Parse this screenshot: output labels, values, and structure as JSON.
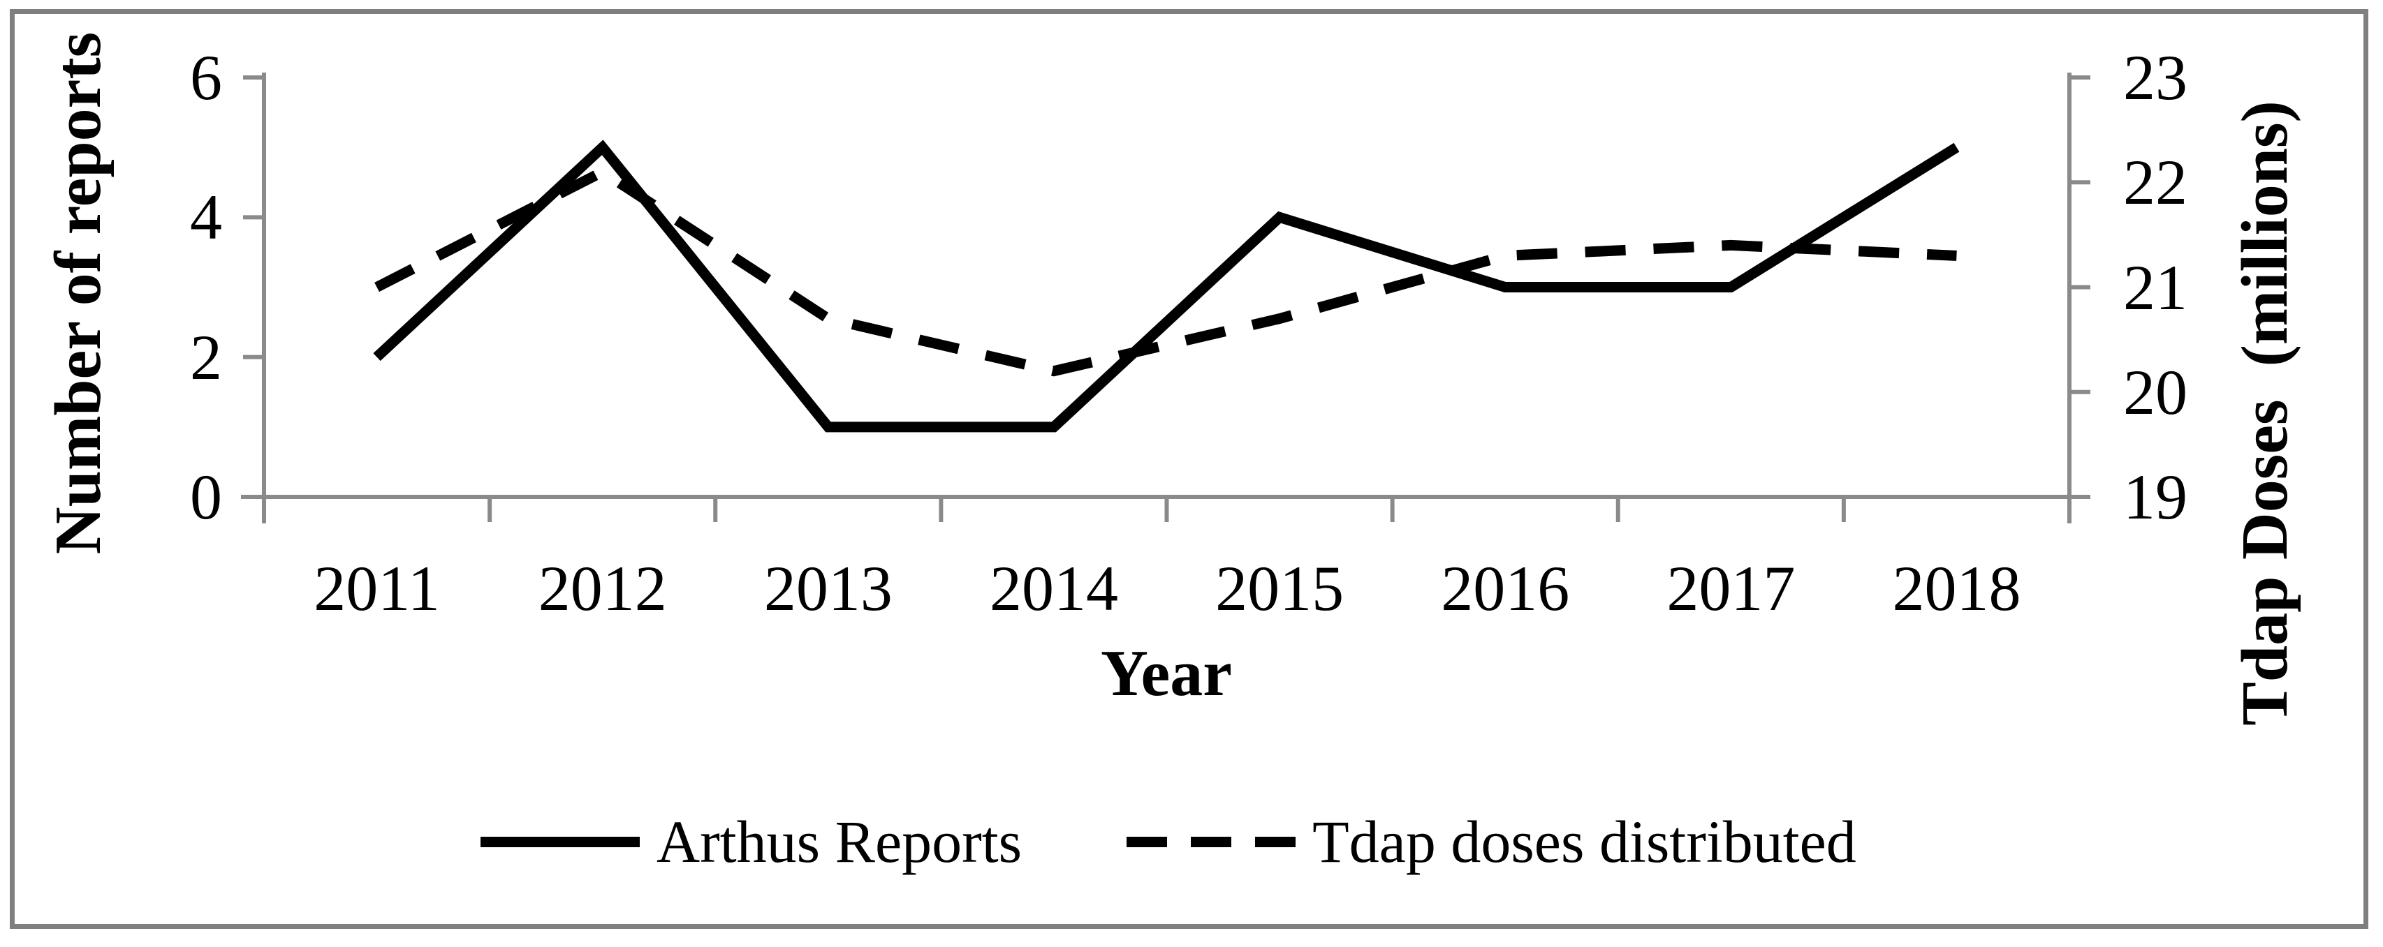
{
  "figure": {
    "background": "#ffffff",
    "border_color": "#7f7f7f"
  },
  "colors": {
    "axis": "#8a8a8a",
    "series_line": "#000000",
    "text": "#000000"
  },
  "chart_data": {
    "type": "line",
    "title": "",
    "x": [
      "2011",
      "2012",
      "2013",
      "2014",
      "2015",
      "2016",
      "2017",
      "2018"
    ],
    "xlabel": "Year",
    "grid": false,
    "legend_position": "bottom-center",
    "left_axis": {
      "label": "Number of reports",
      "ticks": [
        "6",
        "4",
        "2",
        "0"
      ],
      "tick_values": [
        6,
        4,
        2,
        0
      ],
      "range": [
        0,
        6
      ]
    },
    "right_axis": {
      "label": "Tdap Doses  (millions)",
      "ticks": [
        "23",
        "22",
        "21",
        "20",
        "19"
      ],
      "tick_values": [
        23,
        22,
        21,
        20,
        19
      ],
      "range": [
        19,
        23
      ]
    },
    "series": [
      {
        "name": "Arthus Reports",
        "axis": "left",
        "line_style": "solid",
        "color": "#000000",
        "values": [
          2,
          5,
          1,
          1,
          4,
          3,
          3,
          5
        ]
      },
      {
        "name": "Tdap doses distributed",
        "axis": "right",
        "line_style": "dashed",
        "color": "#000000",
        "values": [
          21.0,
          22.1,
          20.7,
          20.2,
          20.7,
          21.3,
          21.4,
          21.3
        ]
      }
    ]
  }
}
